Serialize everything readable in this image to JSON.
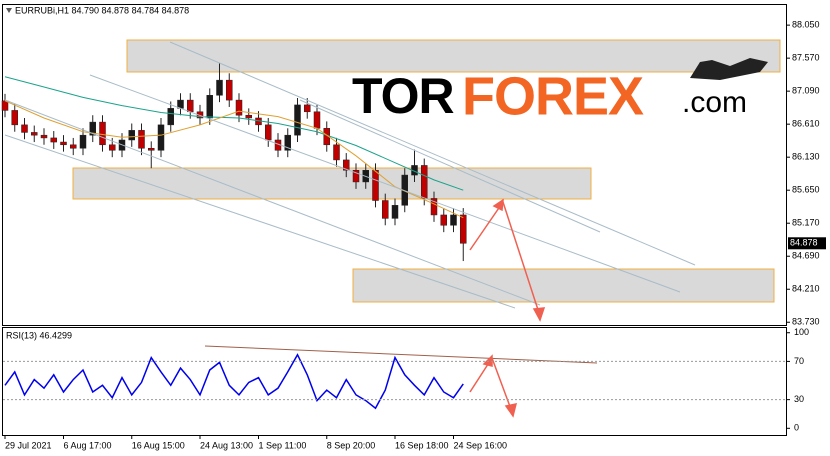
{
  "chart_data": [
    {
      "type": "candlestick",
      "title": "EURRUBi,H1  84.790 84.878 84.784 84.878",
      "categories": [
        "29 Jul 2021",
        null,
        null,
        null,
        null,
        null,
        "6 Aug 17:00",
        null,
        null,
        null,
        null,
        null,
        null,
        "16 Aug 15:00",
        null,
        null,
        null,
        null,
        null,
        null,
        "24 Aug 13:00",
        null,
        null,
        null,
        null,
        null,
        "1 Sep 11:00",
        null,
        null,
        null,
        null,
        null,
        null,
        "8 Sep 20:00",
        null,
        null,
        null,
        null,
        null,
        null,
        "16 Sep 18:00",
        null,
        null,
        null,
        null,
        null,
        "24 Sep 16:00",
        null
      ],
      "open": [
        86.95,
        86.81,
        86.6,
        86.49,
        86.45,
        86.41,
        86.35,
        86.31,
        86.26,
        86.45,
        86.64,
        86.31,
        86.23,
        86.38,
        86.52,
        86.26,
        86.23,
        86.6,
        86.84,
        86.96,
        86.79,
        86.7,
        87.03,
        87.25,
        86.96,
        86.74,
        86.7,
        86.6,
        86.38,
        86.23,
        86.45,
        86.89,
        86.79,
        86.55,
        86.31,
        86.09,
        85.94,
        85.77,
        85.94,
        85.5,
        85.24,
        85.43,
        85.87,
        86.01,
        85.53,
        85.29,
        85.14,
        85.29
      ],
      "high": [
        87.05,
        86.91,
        86.7,
        86.59,
        86.55,
        86.51,
        86.45,
        86.41,
        86.55,
        86.74,
        86.74,
        86.41,
        86.48,
        86.62,
        86.62,
        86.36,
        86.7,
        86.94,
        87.06,
        87.06,
        86.89,
        87.13,
        87.5,
        87.35,
        87.06,
        86.84,
        86.8,
        86.7,
        86.48,
        86.55,
        86.99,
        86.99,
        86.89,
        86.65,
        86.41,
        86.19,
        86.04,
        86.04,
        86.04,
        85.6,
        85.53,
        85.97,
        86.24,
        86.11,
        85.63,
        85.39,
        85.39,
        85.39
      ],
      "low": [
        86.71,
        86.5,
        86.39,
        86.35,
        86.31,
        86.25,
        86.21,
        86.16,
        86.16,
        86.35,
        86.21,
        86.13,
        86.13,
        86.28,
        86.16,
        85.97,
        86.13,
        86.5,
        86.74,
        86.69,
        86.6,
        86.6,
        86.93,
        86.86,
        86.64,
        86.6,
        86.5,
        86.28,
        86.13,
        86.13,
        86.35,
        86.69,
        86.45,
        86.21,
        85.99,
        85.84,
        85.67,
        85.67,
        85.4,
        85.14,
        85.14,
        85.33,
        85.77,
        85.43,
        85.19,
        85.04,
        85.04,
        84.62
      ],
      "close": [
        86.81,
        86.6,
        86.49,
        86.45,
        86.41,
        86.35,
        86.31,
        86.26,
        86.45,
        86.64,
        86.31,
        86.23,
        86.38,
        86.52,
        86.26,
        86.23,
        86.6,
        86.84,
        86.96,
        86.79,
        86.7,
        87.03,
        87.25,
        86.96,
        86.74,
        86.7,
        86.6,
        86.38,
        86.23,
        86.45,
        86.89,
        86.79,
        86.55,
        86.31,
        86.09,
        85.94,
        85.77,
        85.94,
        85.5,
        85.24,
        85.43,
        85.87,
        86.01,
        85.53,
        85.29,
        85.14,
        85.29,
        84.878
      ],
      "up_color": "#1a1a1a",
      "down_color": "#c00000",
      "moving_averages": [
        {
          "color": "#1aa38c",
          "x": [
            0,
            4,
            8,
            12,
            16,
            20,
            24,
            28,
            32,
            36,
            40,
            44,
            47
          ],
          "values": [
            87.3,
            87.15,
            87.0,
            86.88,
            86.78,
            86.72,
            86.7,
            86.62,
            86.5,
            86.3,
            86.05,
            85.8,
            85.65
          ]
        },
        {
          "color": "#e0a030",
          "x": [
            0,
            4,
            8,
            12,
            16,
            20,
            24,
            28,
            32,
            36,
            40,
            44,
            47
          ],
          "values": [
            86.95,
            86.7,
            86.5,
            86.42,
            86.45,
            86.6,
            86.8,
            86.72,
            86.55,
            86.15,
            85.7,
            85.45,
            85.25
          ]
        }
      ],
      "last_price": 84.878,
      "ylim": [
        83.69,
        88.27
      ],
      "yticks": [
        {
          "value": 88.05,
          "label": "88.050"
        },
        {
          "value": 87.57,
          "label": "87.570"
        },
        {
          "value": 87.09,
          "label": "87.090"
        },
        {
          "value": 86.61,
          "label": "86.610"
        },
        {
          "value": 86.13,
          "label": "86.130"
        },
        {
          "value": 85.65,
          "label": "85.650"
        },
        {
          "value": 85.17,
          "label": "85.170"
        },
        {
          "value": 84.69,
          "label": "84.690"
        },
        {
          "value": 84.21,
          "label": "84.210"
        },
        {
          "value": 83.73,
          "label": "83.730"
        }
      ]
    },
    {
      "type": "line",
      "title": "RSI(13) 46.4299",
      "color": "#0000ee",
      "values": [
        45,
        59,
        35,
        51,
        42,
        56,
        38,
        51,
        61,
        38,
        45,
        32,
        53,
        35,
        48,
        74,
        59,
        45,
        63,
        51,
        35,
        61,
        69,
        45,
        35,
        48,
        53,
        35,
        42,
        59,
        77,
        56,
        29,
        40,
        32,
        51,
        35,
        29,
        21,
        40,
        74,
        56,
        45,
        35,
        53,
        38,
        32,
        46.43
      ],
      "ylim": [
        -7,
        106
      ],
      "yticks": [
        100,
        70,
        30,
        0
      ],
      "levels": [
        70,
        30
      ]
    }
  ],
  "logo": {
    "tor": "TOR",
    "forex": "FOREX",
    "com": ".com"
  }
}
